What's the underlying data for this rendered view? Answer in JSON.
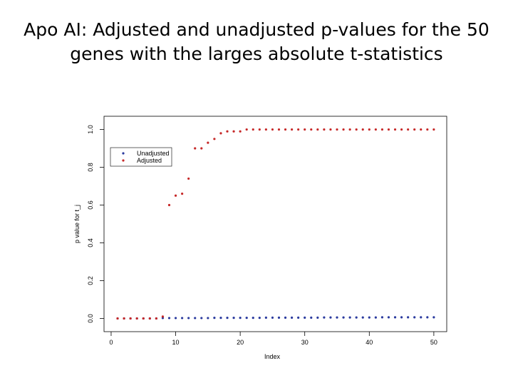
{
  "chart_data": {
    "type": "scatter",
    "title": [
      "Apo AI: Adjusted and unadjusted p-values for the 50",
      "genes with the larges absolute t-statistics"
    ],
    "x_label": "Index",
    "y_label": "p value for t_j",
    "xlim": [
      -1.1,
      52
    ],
    "ylim": [
      -0.07,
      1.07
    ],
    "xticks": [
      0,
      10,
      20,
      30,
      40,
      50
    ],
    "yticks": [
      {
        "value": 0,
        "label": "0.0"
      },
      {
        "value": 0.2,
        "label": "0.2"
      },
      {
        "value": 0.4,
        "label": "0.4"
      },
      {
        "value": 0.6,
        "label": "0.6"
      },
      {
        "value": 0.8,
        "label": "0.8"
      },
      {
        "value": 1,
        "label": "1.0"
      }
    ],
    "legend": "top-left",
    "x": [
      1,
      2,
      3,
      4,
      5,
      6,
      7,
      8,
      9,
      10,
      11,
      12,
      13,
      14,
      15,
      16,
      17,
      18,
      19,
      20,
      21,
      22,
      23,
      24,
      25,
      26,
      27,
      28,
      29,
      30,
      31,
      32,
      33,
      34,
      35,
      36,
      37,
      38,
      39,
      40,
      41,
      42,
      43,
      44,
      45,
      46,
      47,
      48,
      49,
      50
    ],
    "series": [
      {
        "name": "Unadjusted",
        "color": "#2a3a9e",
        "values": [
          0,
          0,
          0,
          0,
          0,
          0,
          0,
          0.002,
          0.002,
          0.002,
          0.002,
          0.002,
          0.002,
          0.002,
          0.002,
          0.003,
          0.003,
          0.003,
          0.003,
          0.003,
          0.003,
          0.003,
          0.003,
          0.004,
          0.004,
          0.004,
          0.004,
          0.004,
          0.004,
          0.004,
          0.004,
          0.004,
          0.005,
          0.005,
          0.005,
          0.005,
          0.005,
          0.005,
          0.005,
          0.005,
          0.005,
          0.006,
          0.006,
          0.006,
          0.006,
          0.006,
          0.006,
          0.006,
          0.006,
          0.006
        ]
      },
      {
        "name": "Adjusted",
        "color": "#c62828",
        "values": [
          0,
          0,
          0,
          0,
          0,
          0,
          0,
          0.01,
          0.6,
          0.65,
          0.66,
          0.74,
          0.9,
          0.9,
          0.93,
          0.95,
          0.98,
          0.99,
          0.99,
          0.99,
          1,
          1,
          1,
          1,
          1,
          1,
          1,
          1,
          1,
          1,
          1,
          1,
          1,
          1,
          1,
          1,
          1,
          1,
          1,
          1,
          1,
          1,
          1,
          1,
          1,
          1,
          1,
          1,
          1,
          1
        ]
      }
    ]
  }
}
